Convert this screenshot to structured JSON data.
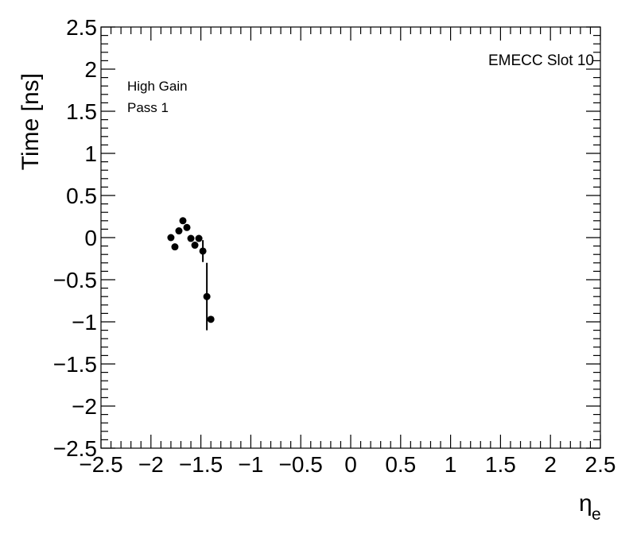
{
  "chart_data": {
    "type": "scatter",
    "ylabel": "Time [ns]",
    "xlabel": "η",
    "xlabel_subscript": "e",
    "annotations": [
      "EMECC Slot 10",
      "High Gain",
      "Pass 1"
    ],
    "x": [
      -1.8,
      -1.76,
      -1.72,
      -1.68,
      -1.64,
      -1.6,
      -1.56,
      -1.52,
      -1.48,
      -1.44,
      -1.4
    ],
    "series": [
      {
        "name": "High Gain",
        "color": "#000000",
        "values": [
          0.0,
          -0.11,
          0.08,
          0.2,
          0.12,
          -0.01,
          -0.09,
          -0.01,
          -0.16,
          -0.7,
          -0.97
        ],
        "errors": [
          0.02,
          0.02,
          0.02,
          0.02,
          0.02,
          0.02,
          0.02,
          0.02,
          0.13,
          0.4,
          0.03
        ]
      }
    ],
    "xlim": [
      -2.5,
      2.5
    ],
    "xticks": [
      {
        "value": -2.5,
        "label": "−2.5"
      },
      {
        "value": -2,
        "label": "−2"
      },
      {
        "value": -1.5,
        "label": "−1.5"
      },
      {
        "value": -1,
        "label": "−1"
      },
      {
        "value": -0.5,
        "label": "−0.5"
      },
      0,
      0.5,
      1,
      1.5,
      2,
      2.5
    ],
    "ylim": [
      -2.5,
      2.5
    ],
    "yticks": [
      {
        "value": -2.5,
        "label": "−2.5"
      },
      {
        "value": -2,
        "label": "−2"
      },
      {
        "value": -1.5,
        "label": "−1.5"
      },
      {
        "value": -1,
        "label": "−1"
      },
      {
        "value": -0.5,
        "label": "−0.5"
      },
      0,
      0.5,
      1,
      1.5,
      2,
      2.5
    ],
    "grid": false
  }
}
